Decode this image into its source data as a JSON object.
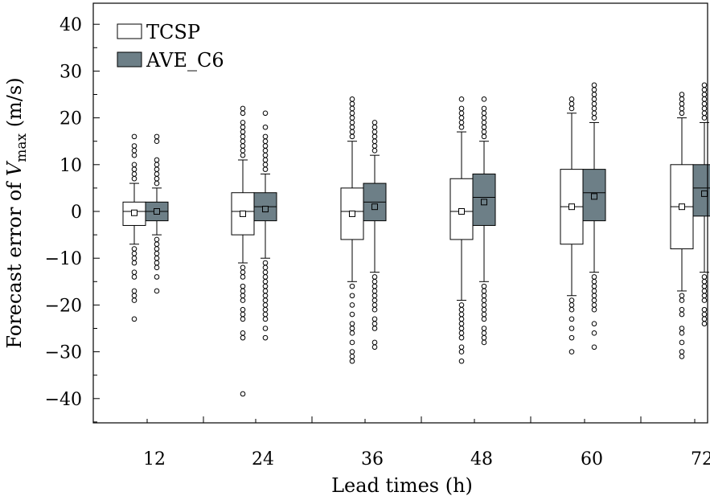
{
  "chart_data": {
    "type": "boxplot",
    "title": "",
    "xlabel": "Lead times (h)",
    "ylabel": {
      "prefix": "Forecast error of ",
      "var": "V",
      "sub": "max",
      "suffix": " (m/s)"
    },
    "ylim": [
      -45,
      45
    ],
    "yticks": [
      -40,
      -30,
      -20,
      -10,
      0,
      10,
      20,
      30,
      40
    ],
    "ytick_labels": [
      "−40",
      "−30",
      "−20",
      "−10",
      "0",
      "10",
      "20",
      "30",
      "40"
    ],
    "categories": [
      "12",
      "24",
      "36",
      "48",
      "60",
      "72"
    ],
    "legend": {
      "position": "top-left"
    },
    "series": [
      {
        "name": "TCSP",
        "color": "#ffffff",
        "boxes": [
          {
            "q1": -3,
            "median": 0,
            "q3": 2,
            "mean": -0.3,
            "whisker_low": -7,
            "whisker_high": 6,
            "outliers": [
              7,
              8,
              9,
              10,
              12,
              13,
              14,
              16,
              -8,
              -9,
              -10,
              -11,
              -13,
              -14,
              -17,
              -18,
              -19,
              -23
            ]
          },
          {
            "q1": -5,
            "median": 0,
            "q3": 4,
            "mean": -0.5,
            "whisker_low": -11,
            "whisker_high": 11,
            "outliers": [
              12,
              13,
              14,
              15,
              16,
              17,
              18,
              19,
              21,
              22,
              -12,
              -13,
              -14,
              -16,
              -17,
              -18,
              -19,
              -21,
              -22,
              -23,
              -26,
              -27,
              -39
            ]
          },
          {
            "q1": -6,
            "median": 0,
            "q3": 5,
            "mean": -0.5,
            "whisker_low": -15,
            "whisker_high": 15,
            "outliers": [
              16,
              17,
              18,
              19,
              20,
              21,
              22,
              23,
              24,
              -16,
              -18,
              -20,
              -22,
              -24,
              -25,
              -26,
              -28,
              -30,
              -31,
              -32
            ]
          },
          {
            "q1": -6,
            "median": 0,
            "q3": 7,
            "mean": 0,
            "whisker_low": -19,
            "whisker_high": 17,
            "outliers": [
              18,
              19,
              20,
              21,
              22,
              24,
              -20,
              -21,
              -22,
              -23,
              -24,
              -25,
              -26,
              -27,
              -29,
              -30,
              -32
            ]
          },
          {
            "q1": -7,
            "median": 1,
            "q3": 9,
            "mean": 1,
            "whisker_low": -18,
            "whisker_high": 21,
            "outliers": [
              22,
              23,
              24,
              -19,
              -20,
              -21,
              -23,
              -25,
              -27,
              -30
            ]
          },
          {
            "q1": -8,
            "median": 1,
            "q3": 10,
            "mean": 1,
            "whisker_low": -17,
            "whisker_high": 20,
            "outliers": [
              21,
              22,
              23,
              24,
              25,
              -18,
              -19,
              -21,
              -22,
              -25,
              -26,
              -28,
              -30,
              -31
            ]
          }
        ]
      },
      {
        "name": "AVE_C6",
        "color": "#6d7f87",
        "boxes": [
          {
            "q1": -2,
            "median": 0,
            "q3": 2,
            "mean": 0,
            "whisker_low": -5,
            "whisker_high": 5,
            "outliers": [
              6,
              7,
              8,
              9,
              10,
              11,
              15,
              16,
              -6,
              -7,
              -8,
              -9,
              -10,
              -11,
              -12,
              -14,
              -17
            ]
          },
          {
            "q1": -2,
            "median": 1,
            "q3": 4,
            "mean": 0.5,
            "whisker_low": -10,
            "whisker_high": 8,
            "outliers": [
              9,
              10,
              11,
              12,
              13,
              14,
              15,
              16,
              18,
              21,
              -11,
              -12,
              -13,
              -14,
              -15,
              -16,
              -17,
              -18,
              -19,
              -20,
              -21,
              -22,
              -23,
              -25,
              -27
            ]
          },
          {
            "q1": -2,
            "median": 2,
            "q3": 6,
            "mean": 1,
            "whisker_low": -13,
            "whisker_high": 12,
            "outliers": [
              13,
              14,
              15,
              16,
              17,
              18,
              19,
              -14,
              -15,
              -16,
              -17,
              -18,
              -19,
              -20,
              -21,
              -23,
              -24,
              -25,
              -28,
              -29
            ]
          },
          {
            "q1": -3,
            "median": 3,
            "q3": 8,
            "mean": 2,
            "whisker_low": -15,
            "whisker_high": 15,
            "outliers": [
              16,
              17,
              18,
              19,
              20,
              21,
              22,
              24,
              -16,
              -17,
              -18,
              -19,
              -20,
              -21,
              -22,
              -23,
              -25,
              -26,
              -27,
              -28
            ]
          },
          {
            "q1": -2,
            "median": 4,
            "q3": 9,
            "mean": 3.2,
            "whisker_low": -13,
            "whisker_high": 19,
            "outliers": [
              20,
              21,
              22,
              23,
              24,
              25,
              26,
              27,
              -14,
              -15,
              -16,
              -17,
              -18,
              -19,
              -20,
              -21,
              -24,
              -26,
              -29
            ]
          },
          {
            "q1": -1,
            "median": 5,
            "q3": 10,
            "mean": 3.8,
            "whisker_low": -13,
            "whisker_high": 19,
            "outliers": [
              20,
              21,
              22,
              23,
              24,
              25,
              26,
              27,
              -14,
              -15,
              -16,
              -17,
              -18,
              -19,
              -21,
              -22,
              -23,
              -24
            ]
          }
        ]
      }
    ]
  }
}
